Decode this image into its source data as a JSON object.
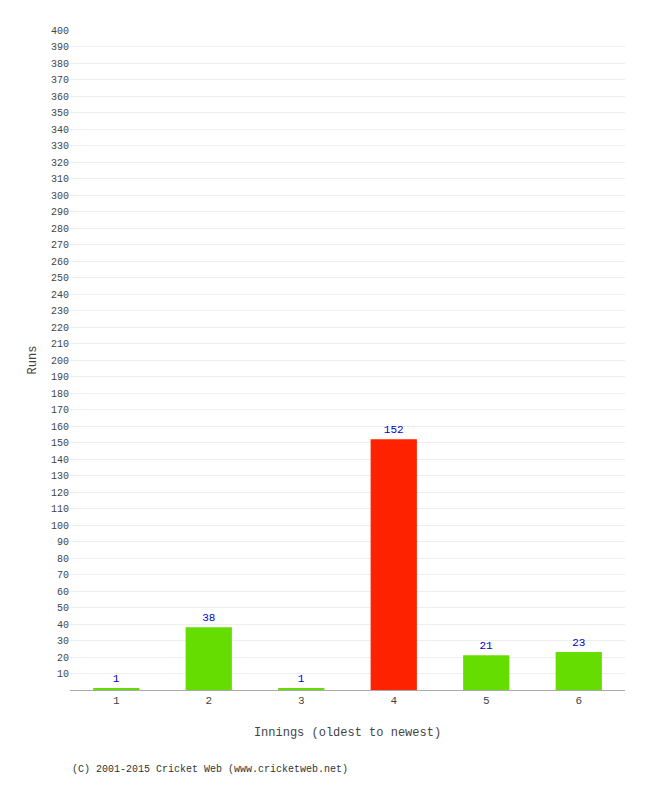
{
  "chart_data": {
    "type": "bar",
    "categories": [
      1,
      2,
      3,
      4,
      5,
      6
    ],
    "values": [
      1,
      38,
      1,
      152,
      21,
      23
    ],
    "colors": [
      "#66dd00",
      "#66dd00",
      "#66dd00",
      "#ff2200",
      "#66dd00",
      "#66dd00"
    ],
    "xlabel": "Innings (oldest to newest)",
    "ylabel": "Runs",
    "ylim": [
      0,
      400
    ],
    "yticks": [
      10,
      20,
      30,
      40,
      50,
      60,
      70,
      80,
      90,
      100,
      110,
      120,
      130,
      140,
      150,
      160,
      170,
      180,
      190,
      200,
      210,
      220,
      230,
      240,
      250,
      260,
      270,
      280,
      290,
      300,
      310,
      320,
      330,
      340,
      350,
      360,
      370,
      380,
      390,
      400
    ],
    "grid": true,
    "data_labels": true,
    "annotations": [
      "(C) 2001-2015 Cricket Web (www.cricketweb.net)"
    ]
  }
}
